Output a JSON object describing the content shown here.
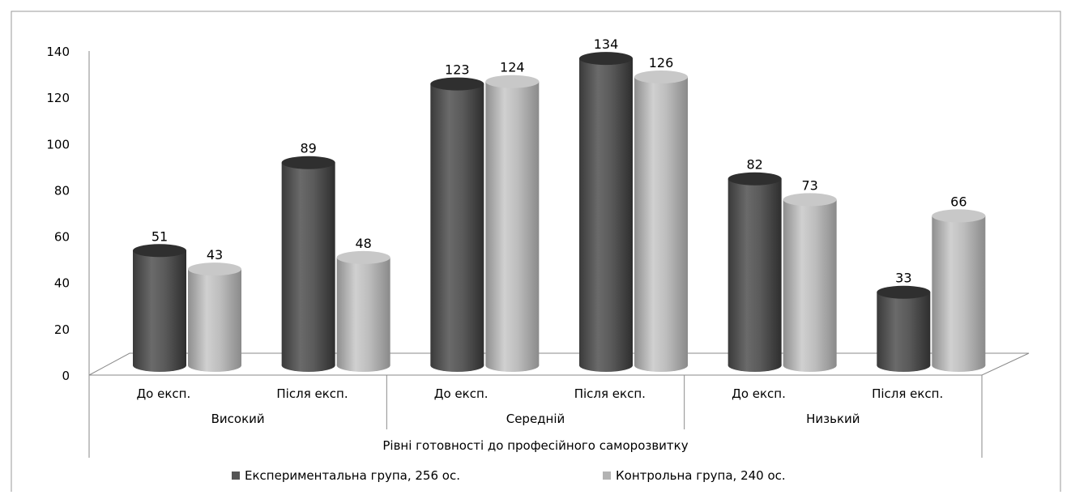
{
  "chart_data": {
    "type": "bar",
    "title": "",
    "ylim": [
      0,
      140
    ],
    "y_ticks": [
      0,
      20,
      40,
      60,
      80,
      100,
      120,
      140
    ],
    "grid": false,
    "legend_position": "bottom",
    "categories": [
      {
        "group": "Високий",
        "sub": "До експ."
      },
      {
        "group": "Високий",
        "sub": "Після експ."
      },
      {
        "group": "Середній",
        "sub": "До експ."
      },
      {
        "group": "Середній",
        "sub": "Після експ."
      },
      {
        "group": "Низький",
        "sub": "До експ."
      },
      {
        "group": "Низький",
        "sub": "Після експ."
      }
    ],
    "groups": [
      "Високий",
      "Середній",
      "Низький"
    ],
    "xlabel": "Рівні готовності до професійного саморозвитку",
    "series": [
      {
        "name": "Експериментальна група, 256 ос.",
        "color": "#555555",
        "values": [
          51,
          89,
          123,
          134,
          82,
          33
        ]
      },
      {
        "name": "Контрольна група, 240 ос.",
        "color": "#b3b3b3",
        "values": [
          43,
          48,
          124,
          126,
          73,
          66
        ]
      }
    ]
  }
}
